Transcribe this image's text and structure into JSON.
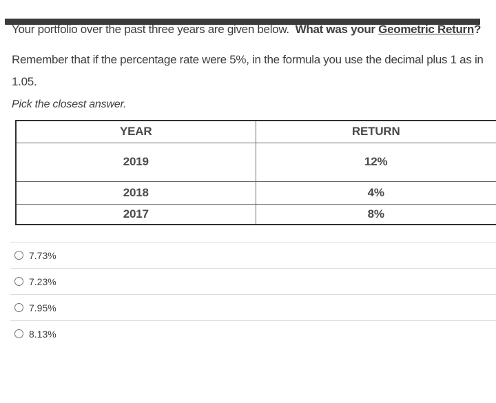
{
  "question": {
    "prompt_regular": "Your portfolio over the past three years are given below.  ",
    "prompt_bold": "What was your ",
    "prompt_bold_underline": "Geometric Return",
    "prompt_bold_suffix": "?",
    "hint": "Remember that if the percentage rate were 5%, in the formula you use the decimal plus 1 as in 1.05.",
    "instruction": "Pick the closest answer."
  },
  "table": {
    "headers": [
      "YEAR",
      "RETURN"
    ],
    "rows": [
      [
        "2019",
        "12%"
      ],
      [
        "2018",
        "4%"
      ],
      [
        "2017",
        "8%"
      ]
    ]
  },
  "options": [
    {
      "label": "7.73%"
    },
    {
      "label": "7.23%"
    },
    {
      "label": "7.95%"
    },
    {
      "label": "8.13%"
    }
  ],
  "colors": {
    "text": "#3e3e3e",
    "table_text": "#4a4a4a",
    "table_border_outer": "#2f2f2f",
    "table_border_inner": "#6a6a6a",
    "option_separator": "#dcdcdc",
    "radio_border": "#707070",
    "top_bar": "#3b3b3b"
  }
}
